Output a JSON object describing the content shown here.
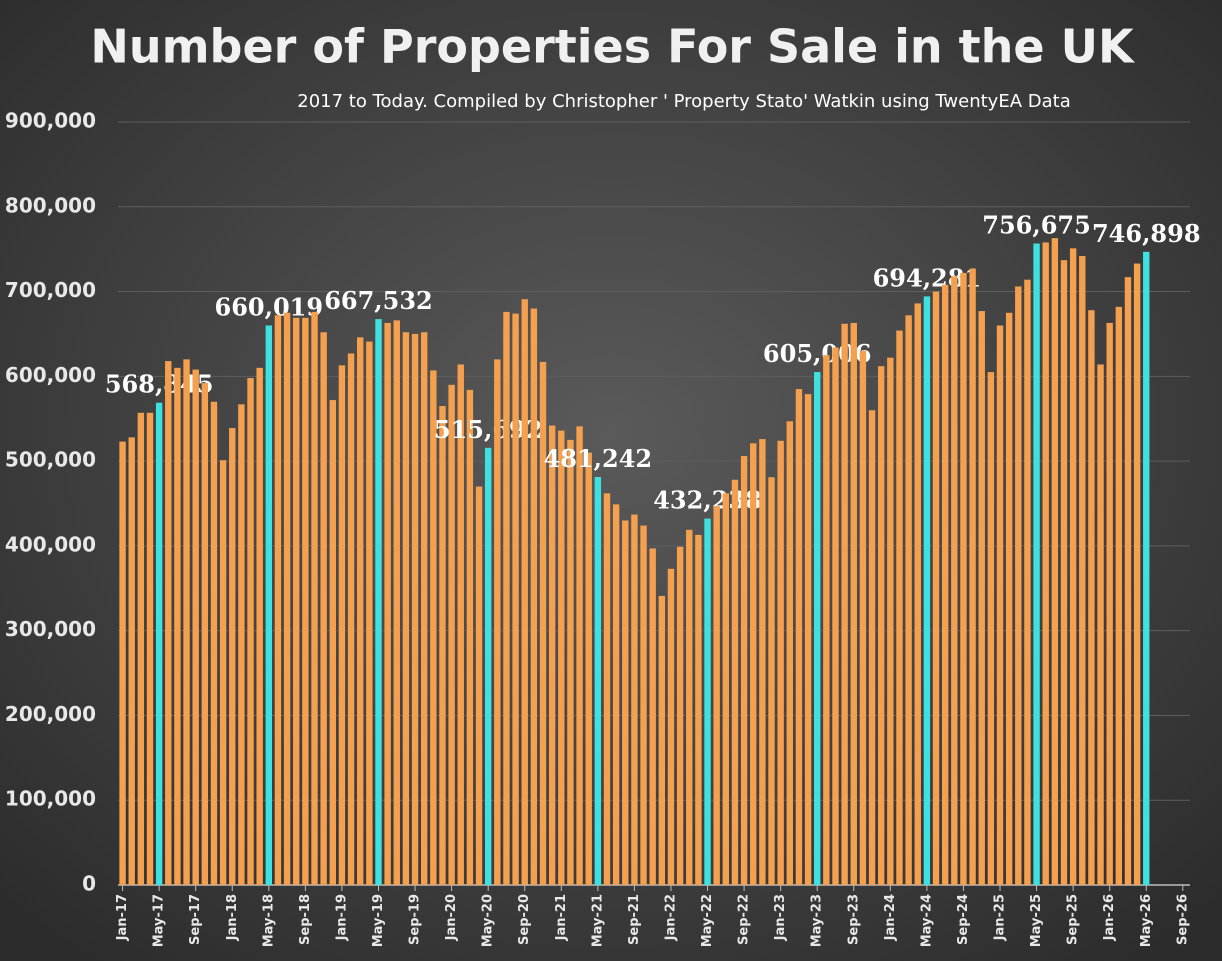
{
  "chart_data": {
    "type": "bar",
    "title": "Number of Properties For Sale in the UK",
    "subtitle": "2017 to Today. Compiled by Christopher ' Property Stato' Watkin using TwentyEA Data",
    "categories": [
      "Jan-17",
      null,
      null,
      null,
      "May-17",
      null,
      null,
      null,
      "Sep-17",
      null,
      null,
      null,
      "Jan-18",
      null,
      null,
      null,
      "May-18",
      null,
      null,
      null,
      "Sep-18",
      null,
      null,
      null,
      "Jan-19",
      null,
      null,
      null,
      "May-19",
      null,
      null,
      null,
      "Sep-19",
      null,
      null,
      null,
      "Jan-20",
      null,
      null,
      null,
      "May-20",
      null,
      null,
      null,
      "Sep-20",
      null,
      null,
      null,
      "Jan-21",
      null,
      null,
      null,
      "May-21",
      null,
      null,
      null,
      "Sep-21",
      null,
      null,
      null,
      "Jan-22",
      null,
      null,
      null,
      "May-22",
      null,
      null,
      null,
      "Sep-22",
      null,
      null,
      null,
      "Jan-23",
      null,
      null,
      null,
      "May-23",
      null,
      null,
      null,
      "Sep-23",
      null,
      null,
      null,
      "Jan-24",
      null,
      null,
      null,
      "May-24",
      null,
      null,
      null,
      "Sep-24",
      null,
      null,
      null,
      "Jan-25",
      null,
      null,
      null,
      "May-25",
      null,
      null,
      null,
      "Sep-25",
      null,
      null,
      null,
      "Jan-26",
      null,
      null,
      null,
      "May-26",
      null,
      null,
      null,
      "Sep-26"
    ],
    "values": [
      523000,
      528000,
      557000,
      557000,
      568845,
      618000,
      610000,
      620000,
      608000,
      592000,
      570000,
      501000,
      539000,
      567000,
      598000,
      610000,
      660019,
      672000,
      675000,
      669000,
      669000,
      676000,
      652000,
      572000,
      613000,
      627000,
      646000,
      641000,
      667532,
      663000,
      666000,
      652000,
      650000,
      652000,
      607000,
      565000,
      590000,
      614000,
      584000,
      470000,
      515692,
      620000,
      676000,
      674000,
      691000,
      680000,
      617000,
      542000,
      536000,
      525000,
      541000,
      510000,
      481242,
      462000,
      449000,
      430000,
      437000,
      424000,
      397000,
      341000,
      373000,
      399000,
      419000,
      413000,
      432238,
      447000,
      462000,
      478000,
      506000,
      521000,
      526000,
      481000,
      524000,
      547000,
      585000,
      579000,
      605006,
      625000,
      634000,
      662000,
      663000,
      630000,
      560000,
      612000,
      622000,
      654000,
      672000,
      686000,
      694281,
      700000,
      708000,
      718000,
      722000,
      727000,
      677000,
      605000,
      660000,
      675000,
      706000,
      714000,
      756675,
      758000,
      763000,
      737000,
      751000,
      742000,
      678000,
      614000,
      663000,
      682000,
      717000,
      733000,
      746898,
      null,
      null,
      null,
      null
    ],
    "value_labels": [
      null,
      null,
      null,
      null,
      "568,845",
      null,
      null,
      null,
      null,
      null,
      null,
      null,
      null,
      null,
      null,
      null,
      "660,019",
      null,
      null,
      null,
      null,
      null,
      null,
      null,
      null,
      null,
      null,
      null,
      "667,532",
      null,
      null,
      null,
      null,
      null,
      null,
      null,
      null,
      null,
      null,
      null,
      "515,692",
      null,
      null,
      null,
      null,
      null,
      null,
      null,
      null,
      null,
      null,
      null,
      "481,242",
      null,
      null,
      null,
      null,
      null,
      null,
      null,
      null,
      null,
      null,
      null,
      "432,238",
      null,
      null,
      null,
      null,
      null,
      null,
      null,
      null,
      null,
      null,
      null,
      "605,006",
      null,
      null,
      null,
      null,
      null,
      null,
      null,
      null,
      null,
      null,
      null,
      "694,281",
      null,
      null,
      null,
      null,
      null,
      null,
      null,
      null,
      null,
      null,
      null,
      "756,675",
      null,
      null,
      null,
      null,
      null,
      null,
      null,
      null,
      null,
      null,
      null,
      "746,898",
      null,
      null,
      null,
      null
    ],
    "color": "#f5a04e",
    "highlight_color": "#3fe0e0",
    "ylim": [
      0,
      900000
    ],
    "yticks": [
      0,
      {
        "value": 100000,
        "label": "100,000"
      },
      {
        "value": 200000,
        "label": "200,000"
      },
      {
        "value": 300000,
        "label": "300,000"
      },
      {
        "value": 400000,
        "label": "400,000"
      },
      {
        "value": 500000,
        "label": "500,000"
      },
      {
        "value": 600000,
        "label": "600,000"
      },
      {
        "value": 700000,
        "label": "700,000"
      },
      {
        "value": 800000,
        "label": "800,000"
      },
      {
        "value": 900000,
        "label": "900,000"
      }
    ],
    "grid": true
  }
}
